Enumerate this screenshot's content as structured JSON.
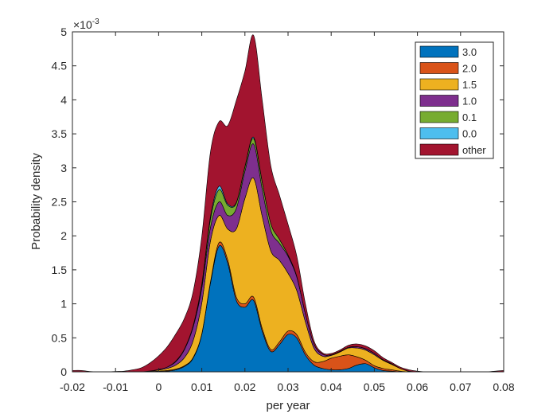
{
  "chart_data": {
    "type": "area",
    "stacked": true,
    "xlabel": "per year",
    "ylabel": "Probability density",
    "xlim": [
      -0.02,
      0.08
    ],
    "ylim": [
      0,
      0.005
    ],
    "y_exponent_label": "×10",
    "y_exponent_power": "-3",
    "x_ticks": [
      -0.02,
      -0.01,
      0,
      0.01,
      0.02,
      0.03,
      0.04,
      0.05,
      0.06,
      0.07,
      0.08
    ],
    "x_tick_labels": [
      "-0.02",
      "-0.01",
      "0",
      "0.01",
      "0.02",
      "0.03",
      "0.04",
      "0.05",
      "0.06",
      "0.07",
      "0.08"
    ],
    "y_ticks": [
      0,
      0.0005,
      0.001,
      0.0015,
      0.002,
      0.0025,
      0.003,
      0.0035,
      0.004,
      0.0045,
      0.005
    ],
    "y_tick_labels": [
      "0",
      "0.5",
      "1",
      "1.5",
      "2",
      "2.5",
      "3",
      "3.5",
      "4",
      "4.5",
      "5"
    ],
    "grid": false,
    "legend_position": "top-right",
    "x": [
      -0.02,
      -0.018,
      -0.016,
      -0.014,
      -0.012,
      -0.01,
      -0.008,
      -0.006,
      -0.004,
      -0.002,
      0,
      0.002,
      0.004,
      0.006,
      0.008,
      0.01,
      0.012,
      0.014,
      0.016,
      0.018,
      0.02,
      0.022,
      0.024,
      0.026,
      0.028,
      0.03,
      0.032,
      0.034,
      0.036,
      0.038,
      0.04,
      0.042,
      0.044,
      0.046,
      0.048,
      0.05,
      0.052,
      0.054,
      0.056,
      0.058,
      0.06,
      0.062,
      0.064,
      0.066,
      0.068,
      0.07,
      0.072,
      0.074,
      0.076,
      0.078,
      0.08
    ],
    "series": [
      {
        "name": "3.0",
        "color": "#0072BD",
        "values": [
          0,
          0,
          0,
          0,
          0,
          0,
          0,
          0,
          0,
          2e-06,
          5e-06,
          1e-05,
          3e-05,
          8e-05,
          0.0002,
          0.00055,
          0.0013,
          0.00185,
          0.0016,
          0.00105,
          0.00095,
          0.00105,
          0.0006,
          0.0003,
          0.0004,
          0.00055,
          0.0005,
          0.00025,
          0.0001,
          5e-05,
          3e-05,
          3e-05,
          5e-05,
          0.0001,
          0.00012,
          6e-05,
          2e-05,
          1e-05,
          0,
          0,
          0,
          0,
          0,
          0,
          0,
          0,
          0,
          0,
          0,
          0,
          0
        ]
      },
      {
        "name": "2.0",
        "color": "#D95319",
        "values": [
          0,
          0,
          0,
          0,
          0,
          0,
          0,
          0,
          0,
          0,
          5e-06,
          1e-05,
          1e-05,
          1e-05,
          1e-05,
          1e-05,
          2e-05,
          5e-05,
          5e-05,
          5e-05,
          5e-05,
          5e-05,
          4e-05,
          3e-05,
          4e-05,
          5e-05,
          5e-05,
          4e-05,
          5e-05,
          0.0001,
          0.00017,
          0.0002,
          0.0002,
          0.00012,
          5e-05,
          3e-05,
          3e-05,
          2e-05,
          1e-05,
          0,
          0,
          0,
          0,
          0,
          0,
          0,
          0,
          0,
          0,
          0,
          0
        ]
      },
      {
        "name": "1.5",
        "color": "#EDB120",
        "values": [
          0,
          0,
          0,
          0,
          0,
          0,
          0,
          0,
          0,
          5e-06,
          1.5e-05,
          3e-05,
          6e-05,
          0.00012,
          0.00025,
          0.00045,
          0.0006,
          0.0004,
          0.00045,
          0.001,
          0.00155,
          0.00175,
          0.00165,
          0.00145,
          0.0012,
          0.00085,
          0.00065,
          0.00045,
          0.0002,
          8e-05,
          4e-05,
          6e-05,
          0.0001,
          0.00013,
          0.00015,
          0.00016,
          0.00012,
          8e-05,
          4e-05,
          1e-05,
          0,
          0,
          0,
          0,
          0,
          0,
          0,
          0,
          0,
          0,
          0
        ]
      },
      {
        "name": "1.0",
        "color": "#7E2F8E",
        "values": [
          0,
          0,
          0,
          0,
          0,
          0,
          0,
          0,
          0,
          5e-06,
          1e-05,
          2e-05,
          5e-05,
          0.00012,
          0.0002,
          0.00022,
          0.0002,
          0.0002,
          0.0002,
          0.0003,
          0.0004,
          0.0005,
          0.0004,
          0.0003,
          0.00025,
          0.00025,
          0.0002,
          0.00012,
          6e-05,
          3e-05,
          1e-05,
          1e-05,
          1e-05,
          2e-05,
          2e-05,
          2e-05,
          1e-05,
          1e-05,
          0,
          0,
          0,
          0,
          0,
          0,
          0,
          0,
          0,
          0,
          0,
          0,
          0
        ]
      },
      {
        "name": "0.1",
        "color": "#77AC30",
        "values": [
          0,
          0,
          0,
          0,
          0,
          0,
          0,
          0,
          0,
          0,
          0,
          0,
          1e-05,
          1e-05,
          2e-05,
          5e-05,
          0.00012,
          0.00018,
          0.00015,
          8e-05,
          6e-05,
          8e-05,
          0.0001,
          0.0001,
          6e-05,
          2e-05,
          1e-05,
          0,
          0,
          0,
          0,
          0,
          0,
          0,
          0,
          0,
          0,
          0,
          0,
          0,
          0,
          0,
          0,
          0,
          0,
          0,
          0,
          0,
          0,
          0,
          0
        ]
      },
      {
        "name": "0.0",
        "color": "#4DBEEE",
        "values": [
          0,
          0,
          0,
          0,
          0,
          0,
          0,
          0,
          0,
          0,
          0,
          0,
          0,
          0,
          0,
          1e-05,
          4e-05,
          5e-05,
          2e-05,
          1e-05,
          1e-05,
          2e-05,
          1e-05,
          0,
          0,
          0,
          0,
          0,
          0,
          0,
          0,
          0,
          0,
          0,
          0,
          0,
          0,
          0,
          0,
          0,
          0,
          0,
          0,
          0,
          0,
          0,
          0,
          0,
          0,
          0,
          0
        ]
      },
      {
        "name": "other",
        "color": "#A2142F",
        "values": [
          2e-05,
          2e-05,
          5e-06,
          0,
          0,
          5e-06,
          1e-05,
          3e-05,
          6e-05,
          0.00012,
          0.0002,
          0.0003,
          0.0004,
          0.00045,
          0.0005,
          0.0007,
          0.00095,
          0.00095,
          0.00115,
          0.0015,
          0.0014,
          0.0015,
          0.0012,
          0.00085,
          0.00065,
          0.00045,
          0.0003,
          0.00015,
          5e-05,
          2e-05,
          2e-05,
          2e-05,
          3e-05,
          4e-05,
          4e-05,
          4e-05,
          3e-05,
          2e-05,
          2e-05,
          2e-05,
          1e-05,
          0,
          0,
          0,
          0,
          0,
          0,
          0,
          0,
          1e-05,
          2e-05
        ]
      }
    ]
  }
}
